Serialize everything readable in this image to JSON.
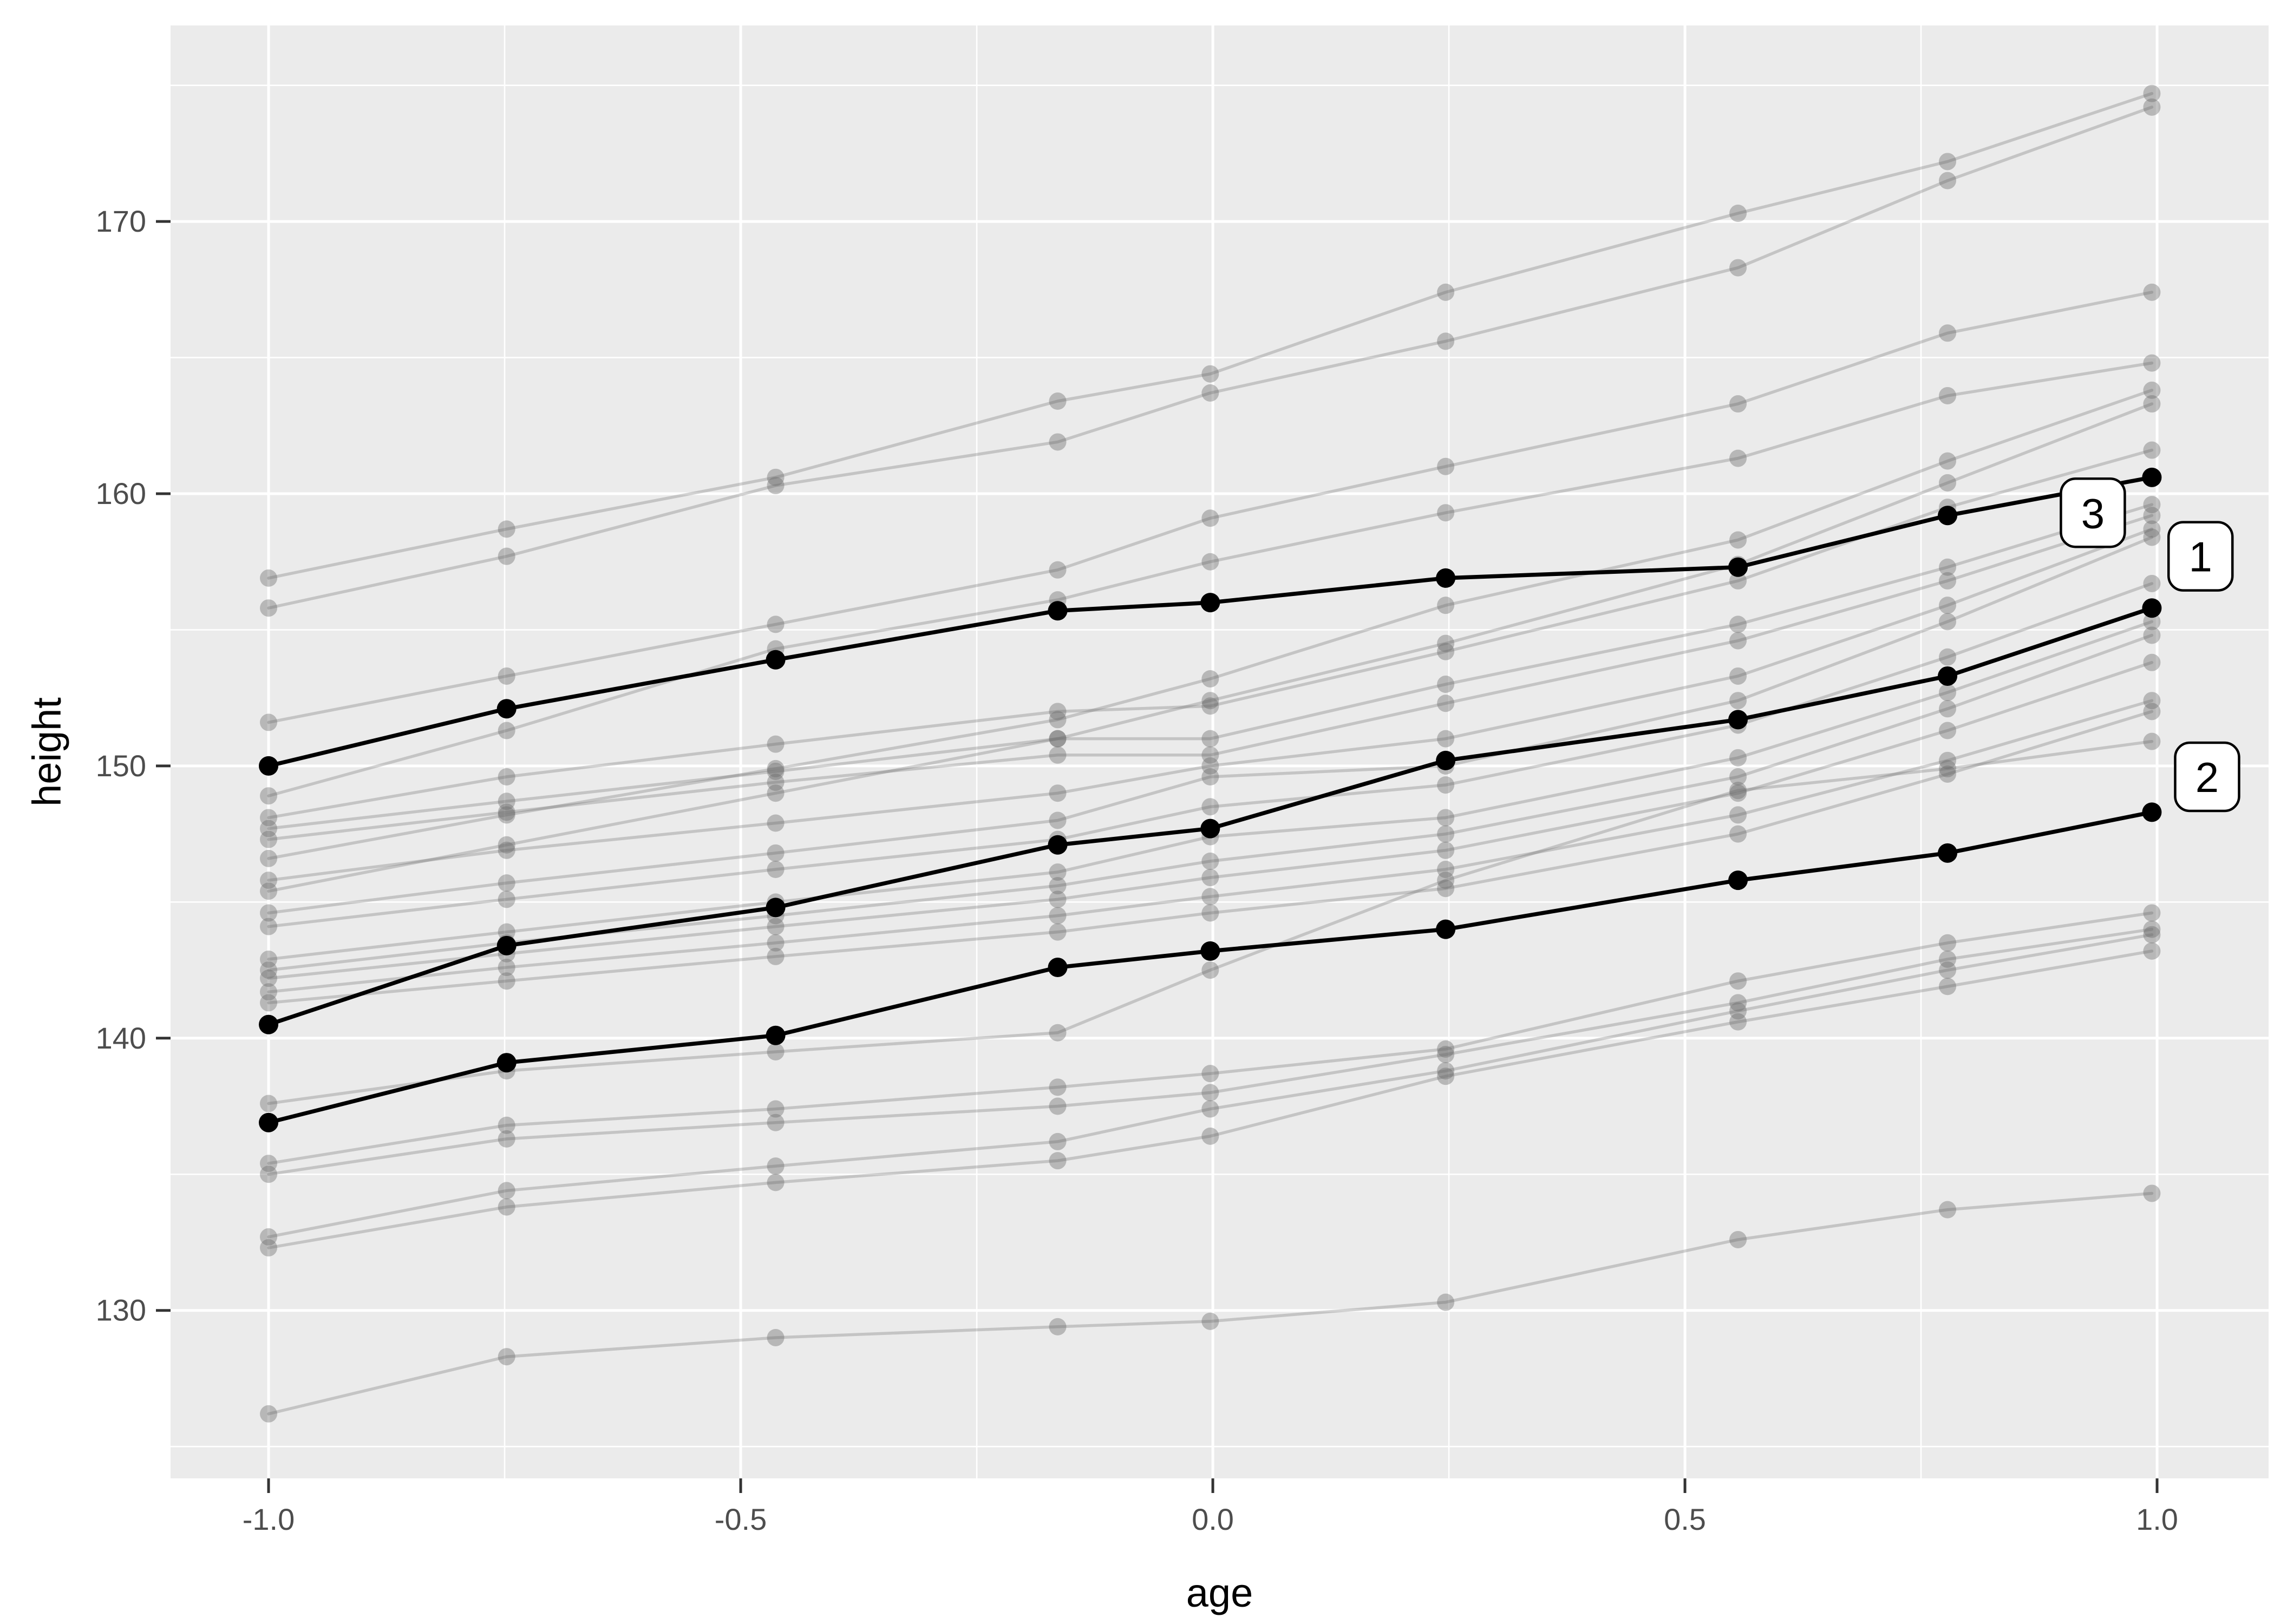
{
  "chart_data": {
    "type": "line",
    "title": "",
    "xlabel": "age",
    "ylabel": "height",
    "legend": "none",
    "grid": "major-and-minor, white on gray panel",
    "panel_color": "#EBEBEB",
    "xlim": [
      -1.1038,
      1.1181
    ],
    "ylim": [
      123.83,
      177.2
    ],
    "x_ticks": {
      "values": [
        -1.0,
        -0.5,
        0.0,
        0.5,
        1.0
      ],
      "labels": [
        "-1.0",
        "-0.5",
        "0.0",
        "0.5",
        "1.0"
      ]
    },
    "y_ticks": {
      "values": [
        130,
        140,
        150,
        160,
        170
      ],
      "labels": [
        "130",
        "140",
        "150",
        "160",
        "170"
      ]
    },
    "x_minor": [
      -0.75,
      -0.25,
      0.25,
      0.75
    ],
    "y_minor": [
      125,
      135,
      145,
      155,
      165,
      175
    ],
    "x": [
      -1.0,
      -0.7479,
      -0.463,
      -0.1643,
      -0.0027,
      0.2466,
      0.5562,
      0.7781,
      0.9945
    ],
    "highlighted_series": [
      {
        "label": "1",
        "values": [
          140.5,
          143.4,
          144.8,
          147.1,
          147.7,
          150.2,
          151.7,
          153.3,
          155.8
        ]
      },
      {
        "label": "2",
        "values": [
          136.9,
          139.1,
          140.1,
          142.6,
          143.2,
          144.0,
          145.8,
          146.8,
          148.3
        ]
      },
      {
        "label": "3",
        "values": [
          150.0,
          152.1,
          153.9,
          155.7,
          156.0,
          156.9,
          157.3,
          159.2,
          160.6
        ]
      }
    ],
    "background_series": [
      [
        156.9,
        158.7,
        160.6,
        163.4,
        164.4,
        167.4,
        170.3,
        172.2,
        174.7
      ],
      [
        155.8,
        157.7,
        160.3,
        161.9,
        163.7,
        165.6,
        168.3,
        171.5,
        174.2
      ],
      [
        151.6,
        153.3,
        155.2,
        157.2,
        159.1,
        161.0,
        163.3,
        165.9,
        167.4
      ],
      [
        148.9,
        151.3,
        154.3,
        156.1,
        157.5,
        159.3,
        161.3,
        163.6,
        164.8
      ],
      [
        148.1,
        149.6,
        150.8,
        152.0,
        152.2,
        154.2,
        156.8,
        159.5,
        161.6
      ],
      [
        147.7,
        148.7,
        149.8,
        151.0,
        151.0,
        153.0,
        155.2,
        157.3,
        159.6
      ],
      [
        147.3,
        148.3,
        149.4,
        150.4,
        150.4,
        152.3,
        154.6,
        156.8,
        159.2
      ],
      [
        146.6,
        148.2,
        149.9,
        151.7,
        153.2,
        155.9,
        158.3,
        161.2,
        163.8
      ],
      [
        145.8,
        146.9,
        147.9,
        149.0,
        150.0,
        151.0,
        153.3,
        155.9,
        158.7
      ],
      [
        145.4,
        147.1,
        149.0,
        151.0,
        152.4,
        154.5,
        157.4,
        160.4,
        163.3
      ],
      [
        144.6,
        145.7,
        146.8,
        148.0,
        149.6,
        150.0,
        152.4,
        155.3,
        158.4
      ],
      [
        144.1,
        145.1,
        146.2,
        147.3,
        148.5,
        149.3,
        151.5,
        154.0,
        156.7
      ],
      [
        142.9,
        143.9,
        145.0,
        146.1,
        147.4,
        148.1,
        150.3,
        152.7,
        155.3
      ],
      [
        142.5,
        143.5,
        144.5,
        145.6,
        146.5,
        147.5,
        149.6,
        152.1,
        154.8
      ],
      [
        142.2,
        143.1,
        144.1,
        145.1,
        145.9,
        146.9,
        149.0,
        151.3,
        153.8
      ],
      [
        141.7,
        142.6,
        143.5,
        144.5,
        145.2,
        146.2,
        148.2,
        150.2,
        152.4
      ],
      [
        141.3,
        142.1,
        143.0,
        143.9,
        144.6,
        145.5,
        147.5,
        149.7,
        152.0
      ],
      [
        137.6,
        138.8,
        139.5,
        140.2,
        142.5,
        145.8,
        149.1,
        149.9,
        150.9
      ],
      [
        135.4,
        136.8,
        137.4,
        138.2,
        138.7,
        139.6,
        142.1,
        143.5,
        144.6
      ],
      [
        135.0,
        136.3,
        136.9,
        137.5,
        138.0,
        139.4,
        141.3,
        142.9,
        144.0
      ],
      [
        132.7,
        134.4,
        135.3,
        136.2,
        137.4,
        138.8,
        141.0,
        142.5,
        143.8
      ],
      [
        132.3,
        133.8,
        134.7,
        135.5,
        136.4,
        138.6,
        140.6,
        141.9,
        143.2
      ],
      [
        126.2,
        128.3,
        129.0,
        129.4,
        129.6,
        130.3,
        132.6,
        133.7,
        134.3
      ]
    ],
    "point_labels": [
      {
        "text": "3",
        "x": 0.932,
        "y": 159.3
      },
      {
        "text": "1",
        "x": 1.046,
        "y": 157.7
      },
      {
        "text": "2",
        "x": 1.053,
        "y": 149.6
      }
    ],
    "colors": {
      "panel": "#EBEBEB",
      "grid": "#FFFFFF",
      "highlight": "#000000",
      "gray_line": "rgba(115,115,115,0.32)",
      "gray_point": "rgba(105,105,105,0.40)",
      "tick_text": "#4D4D4D",
      "tick_mark": "#333333",
      "label_bg": "#FFFFFF",
      "label_border": "#000000"
    }
  }
}
